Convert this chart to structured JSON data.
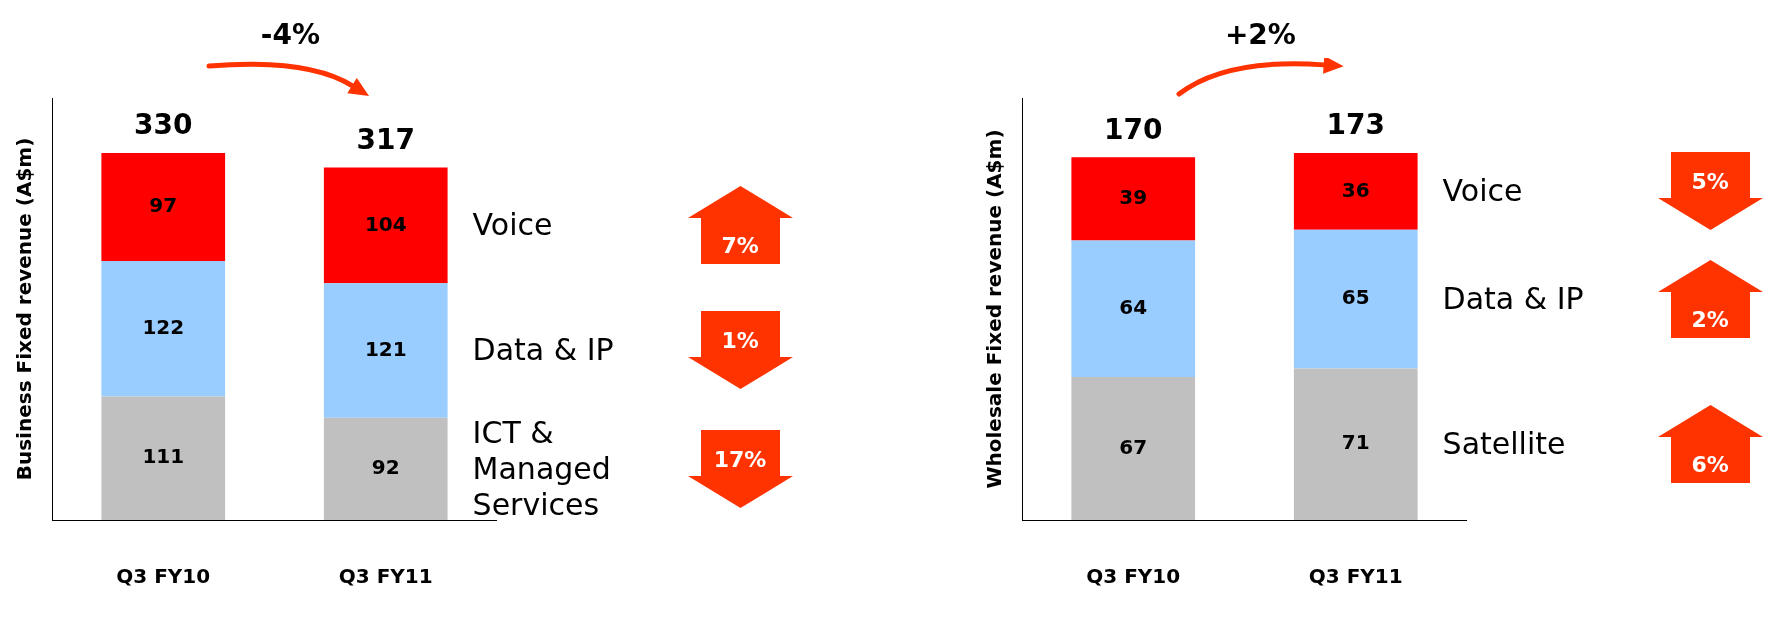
{
  "chart_data": [
    {
      "type": "bar",
      "stacked": true,
      "ylabel": "Business Fixed revenue (A$m)",
      "categories": [
        "Q3 FY10",
        "Q3 FY11"
      ],
      "series": [
        {
          "name": "ICT & Managed Services",
          "color": "#c0c0c0",
          "values": [
            111,
            92
          ]
        },
        {
          "name": "Data & IP",
          "color": "#99ccff",
          "values": [
            122,
            121
          ]
        },
        {
          "name": "Voice",
          "color": "#ff0000",
          "values": [
            97,
            104
          ]
        }
      ],
      "data_labels": true,
      "totals": [
        "330",
        "317"
      ],
      "tick_labels": "x",
      "annotations": [
        "-4%",
        "17%",
        "1%",
        "7%"
      ]
    },
    {
      "type": "bar",
      "stacked": true,
      "ylabel": "Wholesale Fixed revenue (A$m)",
      "categories": [
        "Q3 FY10",
        "Q3 FY11"
      ],
      "series": [
        {
          "name": "Satellite",
          "color": "#c0c0c0",
          "values": [
            67,
            71
          ]
        },
        {
          "name": "Data & IP",
          "color": "#99ccff",
          "values": [
            64,
            65
          ]
        },
        {
          "name": "Voice",
          "color": "#ff0000",
          "values": [
            39,
            36
          ]
        }
      ],
      "data_labels": true,
      "totals": [
        "170",
        "173"
      ],
      "tick_labels": "x",
      "annotations": [
        "+2%",
        "6%",
        "2%",
        "5%"
      ]
    }
  ]
}
